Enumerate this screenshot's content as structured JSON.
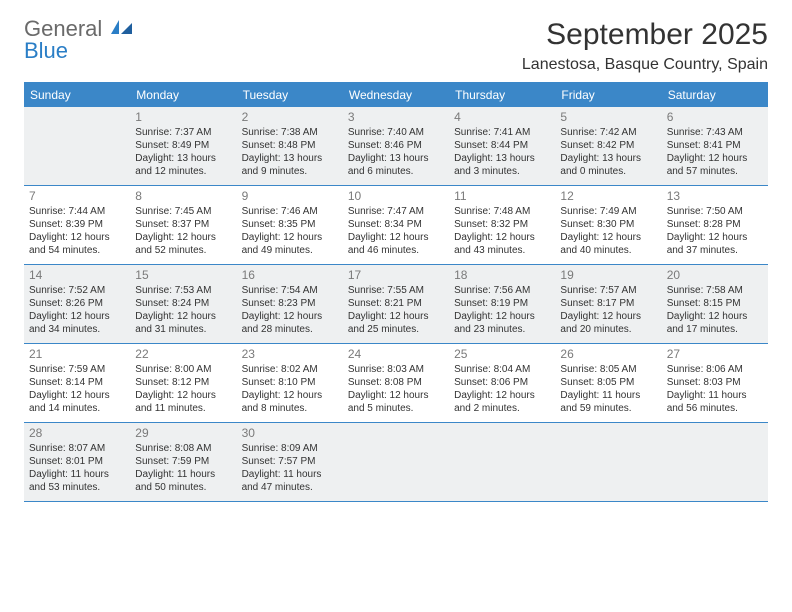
{
  "logo": {
    "word1": "General",
    "word2": "Blue"
  },
  "title": "September 2025",
  "location": "Lanestosa, Basque Country, Spain",
  "colors": {
    "header_bg": "#3b87c8",
    "header_text": "#ffffff",
    "shade_bg": "#eef0f1",
    "cell_bg": "#ffffff",
    "rule": "#3b87c8",
    "daynum": "#7a7a7a",
    "body_text": "#333333",
    "logo_gray": "#6a6a6a",
    "logo_blue": "#2a7ec6"
  },
  "day_headers": [
    "Sunday",
    "Monday",
    "Tuesday",
    "Wednesday",
    "Thursday",
    "Friday",
    "Saturday"
  ],
  "weeks": [
    {
      "shade": true,
      "cells": [
        {
          "n": "",
          "sr": "",
          "ss": "",
          "dl1": "",
          "dl2": ""
        },
        {
          "n": "1",
          "sr": "Sunrise: 7:37 AM",
          "ss": "Sunset: 8:49 PM",
          "dl1": "Daylight: 13 hours",
          "dl2": "and 12 minutes."
        },
        {
          "n": "2",
          "sr": "Sunrise: 7:38 AM",
          "ss": "Sunset: 8:48 PM",
          "dl1": "Daylight: 13 hours",
          "dl2": "and 9 minutes."
        },
        {
          "n": "3",
          "sr": "Sunrise: 7:40 AM",
          "ss": "Sunset: 8:46 PM",
          "dl1": "Daylight: 13 hours",
          "dl2": "and 6 minutes."
        },
        {
          "n": "4",
          "sr": "Sunrise: 7:41 AM",
          "ss": "Sunset: 8:44 PM",
          "dl1": "Daylight: 13 hours",
          "dl2": "and 3 minutes."
        },
        {
          "n": "5",
          "sr": "Sunrise: 7:42 AM",
          "ss": "Sunset: 8:42 PM",
          "dl1": "Daylight: 13 hours",
          "dl2": "and 0 minutes."
        },
        {
          "n": "6",
          "sr": "Sunrise: 7:43 AM",
          "ss": "Sunset: 8:41 PM",
          "dl1": "Daylight: 12 hours",
          "dl2": "and 57 minutes."
        }
      ]
    },
    {
      "shade": false,
      "cells": [
        {
          "n": "7",
          "sr": "Sunrise: 7:44 AM",
          "ss": "Sunset: 8:39 PM",
          "dl1": "Daylight: 12 hours",
          "dl2": "and 54 minutes."
        },
        {
          "n": "8",
          "sr": "Sunrise: 7:45 AM",
          "ss": "Sunset: 8:37 PM",
          "dl1": "Daylight: 12 hours",
          "dl2": "and 52 minutes."
        },
        {
          "n": "9",
          "sr": "Sunrise: 7:46 AM",
          "ss": "Sunset: 8:35 PM",
          "dl1": "Daylight: 12 hours",
          "dl2": "and 49 minutes."
        },
        {
          "n": "10",
          "sr": "Sunrise: 7:47 AM",
          "ss": "Sunset: 8:34 PM",
          "dl1": "Daylight: 12 hours",
          "dl2": "and 46 minutes."
        },
        {
          "n": "11",
          "sr": "Sunrise: 7:48 AM",
          "ss": "Sunset: 8:32 PM",
          "dl1": "Daylight: 12 hours",
          "dl2": "and 43 minutes."
        },
        {
          "n": "12",
          "sr": "Sunrise: 7:49 AM",
          "ss": "Sunset: 8:30 PM",
          "dl1": "Daylight: 12 hours",
          "dl2": "and 40 minutes."
        },
        {
          "n": "13",
          "sr": "Sunrise: 7:50 AM",
          "ss": "Sunset: 8:28 PM",
          "dl1": "Daylight: 12 hours",
          "dl2": "and 37 minutes."
        }
      ]
    },
    {
      "shade": true,
      "cells": [
        {
          "n": "14",
          "sr": "Sunrise: 7:52 AM",
          "ss": "Sunset: 8:26 PM",
          "dl1": "Daylight: 12 hours",
          "dl2": "and 34 minutes."
        },
        {
          "n": "15",
          "sr": "Sunrise: 7:53 AM",
          "ss": "Sunset: 8:24 PM",
          "dl1": "Daylight: 12 hours",
          "dl2": "and 31 minutes."
        },
        {
          "n": "16",
          "sr": "Sunrise: 7:54 AM",
          "ss": "Sunset: 8:23 PM",
          "dl1": "Daylight: 12 hours",
          "dl2": "and 28 minutes."
        },
        {
          "n": "17",
          "sr": "Sunrise: 7:55 AM",
          "ss": "Sunset: 8:21 PM",
          "dl1": "Daylight: 12 hours",
          "dl2": "and 25 minutes."
        },
        {
          "n": "18",
          "sr": "Sunrise: 7:56 AM",
          "ss": "Sunset: 8:19 PM",
          "dl1": "Daylight: 12 hours",
          "dl2": "and 23 minutes."
        },
        {
          "n": "19",
          "sr": "Sunrise: 7:57 AM",
          "ss": "Sunset: 8:17 PM",
          "dl1": "Daylight: 12 hours",
          "dl2": "and 20 minutes."
        },
        {
          "n": "20",
          "sr": "Sunrise: 7:58 AM",
          "ss": "Sunset: 8:15 PM",
          "dl1": "Daylight: 12 hours",
          "dl2": "and 17 minutes."
        }
      ]
    },
    {
      "shade": false,
      "cells": [
        {
          "n": "21",
          "sr": "Sunrise: 7:59 AM",
          "ss": "Sunset: 8:14 PM",
          "dl1": "Daylight: 12 hours",
          "dl2": "and 14 minutes."
        },
        {
          "n": "22",
          "sr": "Sunrise: 8:00 AM",
          "ss": "Sunset: 8:12 PM",
          "dl1": "Daylight: 12 hours",
          "dl2": "and 11 minutes."
        },
        {
          "n": "23",
          "sr": "Sunrise: 8:02 AM",
          "ss": "Sunset: 8:10 PM",
          "dl1": "Daylight: 12 hours",
          "dl2": "and 8 minutes."
        },
        {
          "n": "24",
          "sr": "Sunrise: 8:03 AM",
          "ss": "Sunset: 8:08 PM",
          "dl1": "Daylight: 12 hours",
          "dl2": "and 5 minutes."
        },
        {
          "n": "25",
          "sr": "Sunrise: 8:04 AM",
          "ss": "Sunset: 8:06 PM",
          "dl1": "Daylight: 12 hours",
          "dl2": "and 2 minutes."
        },
        {
          "n": "26",
          "sr": "Sunrise: 8:05 AM",
          "ss": "Sunset: 8:05 PM",
          "dl1": "Daylight: 11 hours",
          "dl2": "and 59 minutes."
        },
        {
          "n": "27",
          "sr": "Sunrise: 8:06 AM",
          "ss": "Sunset: 8:03 PM",
          "dl1": "Daylight: 11 hours",
          "dl2": "and 56 minutes."
        }
      ]
    },
    {
      "shade": true,
      "cells": [
        {
          "n": "28",
          "sr": "Sunrise: 8:07 AM",
          "ss": "Sunset: 8:01 PM",
          "dl1": "Daylight: 11 hours",
          "dl2": "and 53 minutes."
        },
        {
          "n": "29",
          "sr": "Sunrise: 8:08 AM",
          "ss": "Sunset: 7:59 PM",
          "dl1": "Daylight: 11 hours",
          "dl2": "and 50 minutes."
        },
        {
          "n": "30",
          "sr": "Sunrise: 8:09 AM",
          "ss": "Sunset: 7:57 PM",
          "dl1": "Daylight: 11 hours",
          "dl2": "and 47 minutes."
        },
        {
          "n": "",
          "sr": "",
          "ss": "",
          "dl1": "",
          "dl2": ""
        },
        {
          "n": "",
          "sr": "",
          "ss": "",
          "dl1": "",
          "dl2": ""
        },
        {
          "n": "",
          "sr": "",
          "ss": "",
          "dl1": "",
          "dl2": ""
        },
        {
          "n": "",
          "sr": "",
          "ss": "",
          "dl1": "",
          "dl2": ""
        }
      ]
    }
  ]
}
